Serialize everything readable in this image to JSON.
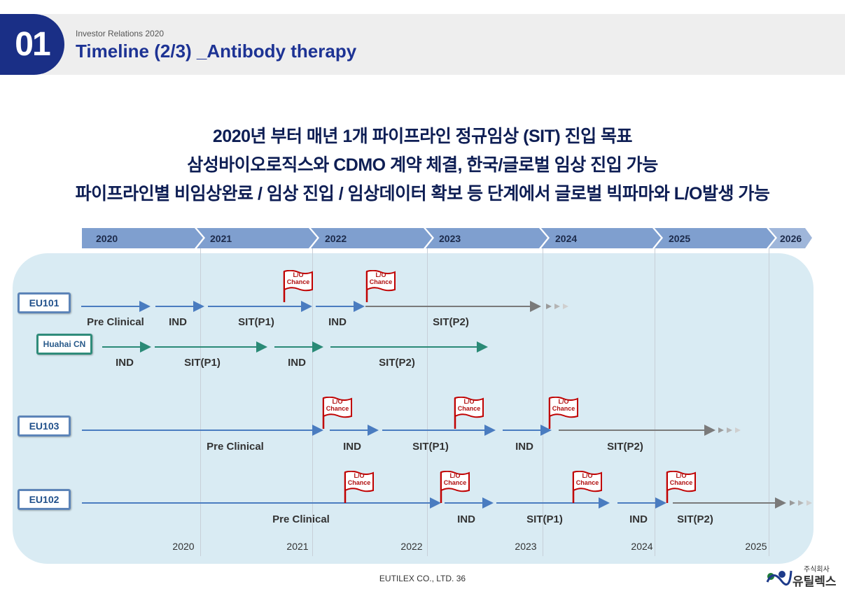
{
  "header": {
    "section_number": "01",
    "subtitle": "Investor Relations 2020",
    "title": "Timeline (2/3) _Antibody therapy"
  },
  "headlines": [
    "2020년 부터 매년 1개 파이프라인 정규임상 (SIT) 진입 목표",
    "삼성바이오로직스와 CDMO 계약 체결, 한국/글로벌 임상 진입 가능",
    "파이프라인별 비임상완료 / 임상 진입 / 임상데이터 확보 등 단계에서 글로벌 빅파마와 L/O발생 가능"
  ],
  "years_top": [
    "2020",
    "2021",
    "2022",
    "2023",
    "2024",
    "2025",
    "2026"
  ],
  "years_bottom": [
    "2020",
    "2021",
    "2022",
    "2023",
    "2024",
    "2025"
  ],
  "tracks": {
    "eu101": {
      "label": "EU101",
      "phases": [
        "Pre Clinical",
        "IND",
        "SIT(P1)",
        "IND",
        "SIT(P2)"
      ]
    },
    "huahai": {
      "label": "Huahai CN",
      "phases": [
        "IND",
        "SIT(P1)",
        "IND",
        "SIT(P2)"
      ]
    },
    "eu103": {
      "label": "EU103",
      "phases": [
        "Pre Clinical",
        "IND",
        "SIT(P1)",
        "IND",
        "SIT(P2)"
      ]
    },
    "eu102": {
      "label": "EU102",
      "phases": [
        "Pre Clinical",
        "IND",
        "SIT(P1)",
        "IND",
        "SIT(P2)"
      ]
    }
  },
  "flag": {
    "line1": "L/O",
    "line2": "Chance"
  },
  "footer": "EUTILEX CO., LTD. 36",
  "logo": {
    "top": "주식회사",
    "main": "유틸렉스"
  },
  "colors": {
    "navy": "#1a2f86",
    "blue_arrow": "#4a7cc0",
    "green_arrow": "#2a8a76",
    "gray_arrow": "#7a7a7a",
    "panel": "#d9ebf3",
    "chevron": "#7f9fcf",
    "flag_red": "#c00000"
  }
}
